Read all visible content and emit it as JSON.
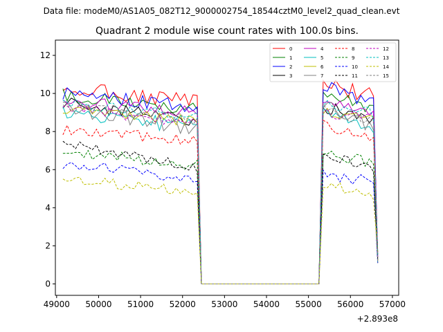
{
  "figure": {
    "suptitle": "Data file: modeM0/AS1A05_082T12_9000002754_18544cztM0_level2_quad_clean.evt"
  },
  "chart_data": {
    "type": "line",
    "title": "Quadrant 2 module wise count rates with 100.0s bins.",
    "xlabel": "",
    "ylabel": "",
    "x_offset_label": "+2.893e8",
    "xlim": [
      48970,
      57150
    ],
    "ylim": [
      -0.6,
      12.8
    ],
    "xticks": [
      49000,
      50000,
      51000,
      52000,
      53000,
      54000,
      55000,
      56000,
      57000
    ],
    "yticks": [
      0,
      2,
      4,
      6,
      8,
      10,
      12
    ],
    "x_start": 49150,
    "x_step": 100,
    "legend_position": "top-right",
    "legend_columns": 4,
    "series": [
      {
        "name": "0",
        "color": "#ff0000",
        "dash": "solid",
        "high": 10.3,
        "mid": 9.6,
        "resume": 10.5,
        "end": 9.8,
        "amp": 0.4
      },
      {
        "name": "1",
        "color": "#008000",
        "dash": "solid",
        "high": 9.9,
        "mid": 9.2,
        "resume": 9.9,
        "end": 9.2,
        "amp": 0.35
      },
      {
        "name": "2",
        "color": "#0000ff",
        "dash": "solid",
        "high": 10.0,
        "mid": 9.3,
        "resume": 10.4,
        "end": 9.4,
        "amp": 0.35
      },
      {
        "name": "3",
        "color": "#000000",
        "dash": "solid",
        "high": 9.5,
        "mid": 8.5,
        "resume": 9.3,
        "end": 8.5,
        "amp": 0.35
      },
      {
        "name": "4",
        "color": "#bf00bf",
        "dash": "solid",
        "high": 9.6,
        "mid": 9.0,
        "resume": 9.6,
        "end": 8.8,
        "amp": 0.3
      },
      {
        "name": "5",
        "color": "#00bfbf",
        "dash": "solid",
        "high": 9.0,
        "mid": 8.2,
        "resume": 9.0,
        "end": 8.1,
        "amp": 0.4
      },
      {
        "name": "6",
        "color": "#bfbf00",
        "dash": "solid",
        "high": 9.2,
        "mid": 8.5,
        "resume": 9.1,
        "end": 8.6,
        "amp": 0.3
      },
      {
        "name": "7",
        "color": "#808080",
        "dash": "solid",
        "high": 9.3,
        "mid": 8.1,
        "resume": 9.4,
        "end": 8.2,
        "amp": 0.4
      },
      {
        "name": "8",
        "color": "#ff0000",
        "dash": "dashed",
        "high": 8.1,
        "mid": 7.5,
        "resume": 8.3,
        "end": 7.6,
        "amp": 0.3
      },
      {
        "name": "9",
        "color": "#008000",
        "dash": "dashed",
        "high": 7.0,
        "mid": 6.2,
        "resume": 7.0,
        "end": 6.2,
        "amp": 0.3
      },
      {
        "name": "10",
        "color": "#0000ff",
        "dash": "dashed",
        "high": 6.3,
        "mid": 5.5,
        "resume": 5.8,
        "end": 5.3,
        "amp": 0.3
      },
      {
        "name": "11",
        "color": "#000000",
        "dash": "dashed",
        "high": 7.4,
        "mid": 6.1,
        "resume": 6.8,
        "end": 6.0,
        "amp": 0.25
      },
      {
        "name": "12",
        "color": "#bf00bf",
        "dash": "dashed",
        "high": 9.3,
        "mid": 8.4,
        "resume": 9.0,
        "end": 8.6,
        "amp": 0.3
      },
      {
        "name": "13",
        "color": "#00bfbf",
        "dash": "dashed",
        "high": 9.5,
        "mid": 8.8,
        "resume": 9.4,
        "end": 8.9,
        "amp": 0.3
      },
      {
        "name": "14",
        "color": "#bfbf00",
        "dash": "dashed",
        "high": 5.6,
        "mid": 4.8,
        "resume": 5.2,
        "end": 4.6,
        "amp": 0.3
      },
      {
        "name": "15",
        "color": "#808080",
        "dash": "dashed",
        "high": 9.4,
        "mid": 8.6,
        "resume": 9.2,
        "end": 8.4,
        "amp": 0.3
      }
    ],
    "gap": {
      "drop_start": 52350,
      "zero_from": 52450,
      "zero_to": 55250,
      "resume_at": 55350,
      "end_x": 56650
    }
  }
}
